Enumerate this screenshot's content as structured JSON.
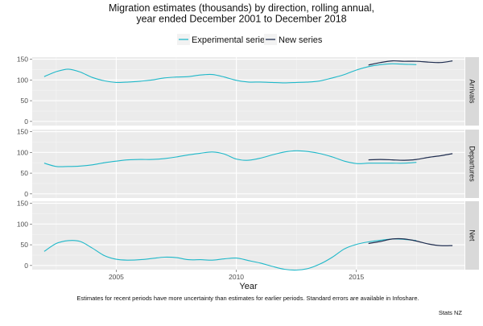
{
  "chart_data": {
    "type": "line",
    "title_lines": [
      "Migration estimates (thousands) by direction, rolling annual,",
      "year ended December 2001 to December 2018"
    ],
    "xlabel": "Year",
    "xlim": [
      2001.5,
      2019.5
    ],
    "x_ticks": [
      2005,
      2010,
      2015
    ],
    "ylim": [
      -10,
      155
    ],
    "y_ticks": [
      0,
      50,
      100,
      150
    ],
    "grid": true,
    "legend_position": "top",
    "legend": [
      {
        "name": "Experimental series",
        "color": "#1fb8c9"
      },
      {
        "name": "New series",
        "color": "#1f2d4f"
      }
    ],
    "panels": [
      {
        "label": "Arrivals",
        "series": [
          {
            "name": "Experimental series",
            "x": [
              2002.0,
              2002.5,
              2003.0,
              2003.5,
              2004.0,
              2004.5,
              2005.0,
              2005.5,
              2006.0,
              2006.5,
              2007.0,
              2007.5,
              2008.0,
              2008.5,
              2009.0,
              2009.5,
              2010.0,
              2010.5,
              2011.0,
              2011.5,
              2012.0,
              2012.5,
              2013.0,
              2013.5,
              2014.0,
              2014.5,
              2015.0,
              2015.5,
              2016.0,
              2016.5,
              2017.0,
              2017.5
            ],
            "values": [
              108,
              120,
              126,
              119,
              106,
              98,
              94,
              95,
              97,
              100,
              105,
              107,
              108,
              112,
              113,
              107,
              99,
              95,
              95,
              94,
              93,
              94,
              95,
              98,
              105,
              113,
              124,
              132,
              137,
              139,
              138,
              137
            ]
          },
          {
            "name": "New series",
            "x": [
              2015.5,
              2016.0,
              2016.5,
              2017.0,
              2017.5,
              2018.0,
              2018.5,
              2019.0
            ],
            "values": [
              136,
              142,
              146,
              145,
              145,
              143,
              142,
              146
            ]
          }
        ]
      },
      {
        "label": "Departures",
        "series": [
          {
            "name": "Experimental series",
            "x": [
              2002.0,
              2002.5,
              2003.0,
              2003.5,
              2004.0,
              2004.5,
              2005.0,
              2005.5,
              2006.0,
              2006.5,
              2007.0,
              2007.5,
              2008.0,
              2008.5,
              2009.0,
              2009.5,
              2010.0,
              2010.5,
              2011.0,
              2011.5,
              2012.0,
              2012.5,
              2013.0,
              2013.5,
              2014.0,
              2014.5,
              2015.0,
              2015.5,
              2016.0,
              2016.5,
              2017.0,
              2017.5
            ],
            "values": [
              74,
              66,
              66,
              67,
              70,
              75,
              79,
              82,
              83,
              83,
              85,
              89,
              94,
              98,
              101,
              96,
              84,
              81,
              86,
              94,
              101,
              104,
              102,
              97,
              89,
              79,
              73,
              74,
              74,
              74,
              74,
              76
            ]
          },
          {
            "name": "New series",
            "x": [
              2015.5,
              2016.0,
              2016.5,
              2017.0,
              2017.5,
              2018.0,
              2018.5,
              2019.0
            ],
            "values": [
              82,
              83,
              82,
              81,
              83,
              88,
              92,
              97
            ]
          }
        ]
      },
      {
        "label": "Net",
        "series": [
          {
            "name": "Experimental series",
            "x": [
              2002.0,
              2002.5,
              2003.0,
              2003.5,
              2004.0,
              2004.5,
              2005.0,
              2005.5,
              2006.0,
              2006.5,
              2007.0,
              2007.5,
              2008.0,
              2008.5,
              2009.0,
              2009.5,
              2010.0,
              2010.5,
              2011.0,
              2011.5,
              2012.0,
              2012.5,
              2013.0,
              2013.5,
              2014.0,
              2014.5,
              2015.0,
              2015.5,
              2016.0,
              2016.5,
              2017.0,
              2017.5
            ],
            "values": [
              34,
              53,
              60,
              58,
              42,
              24,
              15,
              13,
              14,
              17,
              20,
              19,
              14,
              14,
              13,
              16,
              18,
              12,
              6,
              -2,
              -9,
              -11,
              -7,
              4,
              20,
              40,
              51,
              57,
              61,
              64,
              63,
              60
            ]
          },
          {
            "name": "New series",
            "x": [
              2015.5,
              2016.0,
              2016.5,
              2017.0,
              2017.5,
              2018.0,
              2018.5,
              2019.0
            ],
            "values": [
              53,
              58,
              64,
              64,
              59,
              52,
              48,
              48
            ]
          }
        ]
      }
    ],
    "note": "Estimates for recent periods have more uncertainty than estimates for earlier periods. Standard errors are available in Infoshare.",
    "source": "Stats NZ"
  }
}
